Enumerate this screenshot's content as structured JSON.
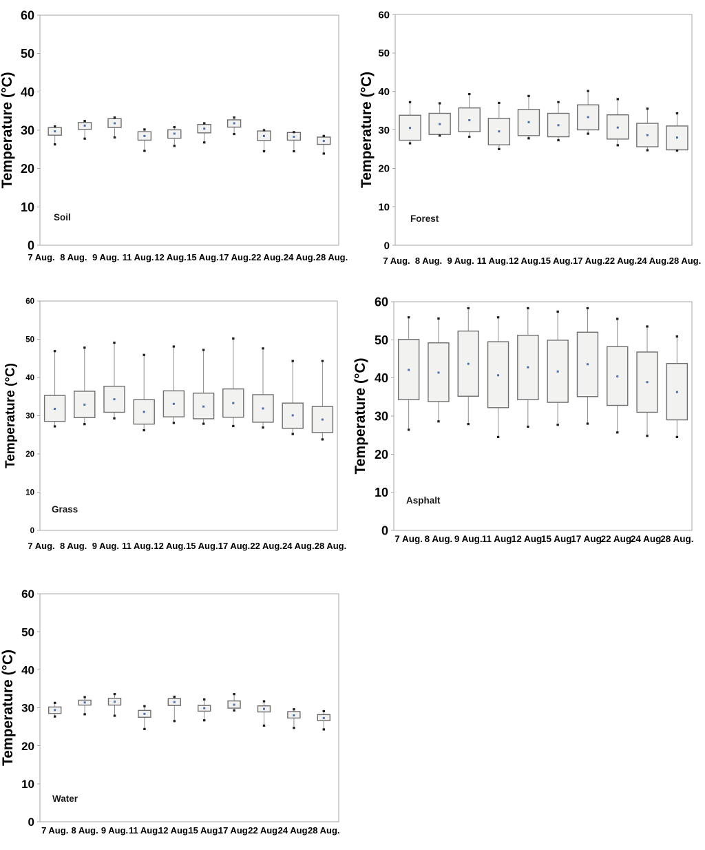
{
  "colors": {
    "background": "#ffffff",
    "axis": "#a6a6a6",
    "tick_text": "#000000",
    "box_fill": "#f2f2f0",
    "box_border": "#6e6e6e",
    "whisker": "#8c8c8c",
    "whisker_cap": "#1f1f1f",
    "mean_marker": "#4e6fae",
    "panel_label": "#1a1a1a"
  },
  "chart_data": [
    {
      "id": "soil",
      "type": "box",
      "title": "Soil",
      "ylabel": "Temperature (°C)",
      "ylim": [
        0,
        60
      ],
      "yticks": [
        0,
        10,
        20,
        30,
        40,
        50,
        60
      ],
      "grid": false,
      "legend": "none",
      "categories": [
        "7 Aug.",
        "8 Aug.",
        "9 Aug.",
        "11 Aug.",
        "12 Aug.",
        "15 Aug.",
        "17 Aug.",
        "22 Aug.",
        "24 Aug.",
        "28 Aug."
      ],
      "boxes": [
        {
          "low": 26.3,
          "q1": 28.7,
          "mean": 29.7,
          "q3": 30.7,
          "high": 31.0
        },
        {
          "low": 27.8,
          "q1": 30.2,
          "mean": 31.2,
          "q3": 32.0,
          "high": 32.4
        },
        {
          "low": 28.1,
          "q1": 30.7,
          "mean": 31.8,
          "q3": 33.0,
          "high": 33.3
        },
        {
          "low": 24.6,
          "q1": 27.4,
          "mean": 28.5,
          "q3": 29.6,
          "high": 30.2
        },
        {
          "low": 25.9,
          "q1": 27.9,
          "mean": 29.1,
          "q3": 30.1,
          "high": 30.8
        },
        {
          "low": 26.8,
          "q1": 29.3,
          "mean": 30.4,
          "q3": 31.5,
          "high": 31.8
        },
        {
          "low": 29.0,
          "q1": 30.8,
          "mean": 31.8,
          "q3": 32.7,
          "high": 33.3
        },
        {
          "low": 24.5,
          "q1": 27.3,
          "mean": 28.5,
          "q3": 29.8,
          "high": 30.0
        },
        {
          "low": 24.5,
          "q1": 27.4,
          "mean": 28.3,
          "q3": 29.4,
          "high": 29.5
        },
        {
          "low": 23.9,
          "q1": 26.3,
          "mean": 27.2,
          "q3": 28.2,
          "high": 28.5
        }
      ]
    },
    {
      "id": "forest",
      "type": "box",
      "title": "Forest",
      "ylabel": "Temperature (°C)",
      "ylim": [
        0,
        60
      ],
      "yticks": [
        0,
        10,
        20,
        30,
        40,
        50,
        60
      ],
      "grid": false,
      "legend": "none",
      "categories": [
        "7 Aug.",
        "8 Aug.",
        "9 Aug.",
        "11 Aug.",
        "12 Aug.",
        "15 Aug.",
        "17 Aug.",
        "22 Aug.",
        "24 Aug.",
        "28 Aug."
      ],
      "boxes": [
        {
          "low": 26.5,
          "q1": 27.3,
          "mean": 30.5,
          "q3": 33.8,
          "high": 37.2
        },
        {
          "low": 28.5,
          "q1": 28.8,
          "mean": 31.5,
          "q3": 34.3,
          "high": 36.9
        },
        {
          "low": 28.2,
          "q1": 29.5,
          "mean": 32.5,
          "q3": 35.7,
          "high": 39.3
        },
        {
          "low": 25.0,
          "q1": 26.1,
          "mean": 29.6,
          "q3": 33.0,
          "high": 37.0
        },
        {
          "low": 27.8,
          "q1": 28.5,
          "mean": 32.0,
          "q3": 35.3,
          "high": 38.8
        },
        {
          "low": 27.3,
          "q1": 28.2,
          "mean": 31.2,
          "q3": 34.3,
          "high": 37.2
        },
        {
          "low": 29.0,
          "q1": 30.0,
          "mean": 33.3,
          "q3": 36.5,
          "high": 40.1
        },
        {
          "low": 26.0,
          "q1": 27.6,
          "mean": 30.6,
          "q3": 33.9,
          "high": 38.0
        },
        {
          "low": 24.7,
          "q1": 25.6,
          "mean": 28.6,
          "q3": 31.7,
          "high": 35.5
        },
        {
          "low": 24.6,
          "q1": 24.8,
          "mean": 28.0,
          "q3": 31.0,
          "high": 34.3
        }
      ]
    },
    {
      "id": "grass",
      "type": "box",
      "title": "Grass",
      "ylabel": "Temperature (°C)",
      "ylim": [
        0,
        60
      ],
      "yticks": [
        0,
        10,
        20,
        30,
        40,
        50,
        60
      ],
      "grid": false,
      "legend": "none",
      "categories": [
        "7 Aug.",
        "8 Aug.",
        "9 Aug.",
        "11 Aug.",
        "12 Aug.",
        "15 Aug.",
        "17 Aug.",
        "22 Aug.",
        "24 Aug.",
        "28 Aug."
      ],
      "boxes": [
        {
          "low": 27.2,
          "q1": 28.5,
          "mean": 31.8,
          "q3": 35.3,
          "high": 46.9
        },
        {
          "low": 27.8,
          "q1": 29.5,
          "mean": 32.9,
          "q3": 36.4,
          "high": 47.8
        },
        {
          "low": 29.3,
          "q1": 30.9,
          "mean": 34.3,
          "q3": 37.7,
          "high": 49.1
        },
        {
          "low": 26.2,
          "q1": 27.8,
          "mean": 31.0,
          "q3": 34.2,
          "high": 45.9
        },
        {
          "low": 28.1,
          "q1": 29.7,
          "mean": 33.1,
          "q3": 36.5,
          "high": 48.1
        },
        {
          "low": 27.9,
          "q1": 29.2,
          "mean": 32.4,
          "q3": 35.9,
          "high": 47.2
        },
        {
          "low": 27.3,
          "q1": 29.6,
          "mean": 33.3,
          "q3": 37.0,
          "high": 50.2
        },
        {
          "low": 26.9,
          "q1": 28.3,
          "mean": 31.9,
          "q3": 35.5,
          "high": 47.6
        },
        {
          "low": 25.2,
          "q1": 26.7,
          "mean": 30.1,
          "q3": 33.3,
          "high": 44.3
        },
        {
          "low": 23.8,
          "q1": 25.6,
          "mean": 29.0,
          "q3": 32.4,
          "high": 44.3
        }
      ]
    },
    {
      "id": "asphalt",
      "type": "box",
      "title": "Asphalt",
      "ylabel": "Temperature (°C)",
      "ylim": [
        0,
        60
      ],
      "yticks": [
        0,
        10,
        20,
        30,
        40,
        50,
        60
      ],
      "grid": false,
      "legend": "none",
      "categories": [
        "7 Aug.",
        "8 Aug.",
        "9 Aug.",
        "11 Aug.",
        "12 Aug.",
        "15 Aug.",
        "17 Aug.",
        "22 Aug.",
        "24 Aug.",
        "28 Aug."
      ],
      "boxes": [
        {
          "low": 26.4,
          "q1": 34.3,
          "mean": 42.1,
          "q3": 50.1,
          "high": 55.9
        },
        {
          "low": 28.6,
          "q1": 33.8,
          "mean": 41.4,
          "q3": 49.2,
          "high": 55.6
        },
        {
          "low": 27.9,
          "q1": 35.2,
          "mean": 43.7,
          "q3": 52.3,
          "high": 58.3
        },
        {
          "low": 24.5,
          "q1": 32.2,
          "mean": 40.7,
          "q3": 49.5,
          "high": 55.9
        },
        {
          "low": 27.2,
          "q1": 34.3,
          "mean": 42.8,
          "q3": 51.2,
          "high": 58.3
        },
        {
          "low": 27.7,
          "q1": 33.6,
          "mean": 41.7,
          "q3": 49.9,
          "high": 57.4
        },
        {
          "low": 28.0,
          "q1": 35.1,
          "mean": 43.6,
          "q3": 52.0,
          "high": 58.3
        },
        {
          "low": 25.7,
          "q1": 32.8,
          "mean": 40.4,
          "q3": 48.2,
          "high": 55.5
        },
        {
          "low": 24.8,
          "q1": 31.0,
          "mean": 38.9,
          "q3": 46.8,
          "high": 53.5
        },
        {
          "low": 24.5,
          "q1": 29.0,
          "mean": 36.3,
          "q3": 43.8,
          "high": 50.9
        }
      ]
    },
    {
      "id": "water",
      "type": "box",
      "title": "Water",
      "ylabel": "Temperature (°C)",
      "ylim": [
        0,
        60
      ],
      "yticks": [
        0,
        10,
        20,
        30,
        40,
        50,
        60
      ],
      "grid": false,
      "legend": "none",
      "categories": [
        "7 Aug.",
        "8 Aug.",
        "9 Aug.",
        "11 Aug.",
        "12 Aug.",
        "15 Aug.",
        "17 Aug.",
        "22 Aug.",
        "24 Aug.",
        "28 Aug."
      ],
      "boxes": [
        {
          "low": 27.7,
          "q1": 28.5,
          "mean": 29.4,
          "q3": 30.2,
          "high": 31.3
        },
        {
          "low": 28.3,
          "q1": 30.7,
          "mean": 31.4,
          "q3": 32.0,
          "high": 32.8
        },
        {
          "low": 27.9,
          "q1": 30.7,
          "mean": 31.6,
          "q3": 32.5,
          "high": 33.6
        },
        {
          "low": 24.4,
          "q1": 27.5,
          "mean": 28.4,
          "q3": 29.3,
          "high": 30.4
        },
        {
          "low": 26.5,
          "q1": 30.6,
          "mean": 31.5,
          "q3": 32.4,
          "high": 32.9
        },
        {
          "low": 26.7,
          "q1": 29.1,
          "mean": 29.9,
          "q3": 30.6,
          "high": 32.2
        },
        {
          "low": 29.3,
          "q1": 29.9,
          "mean": 30.8,
          "q3": 31.8,
          "high": 33.6
        },
        {
          "low": 25.3,
          "q1": 28.9,
          "mean": 29.7,
          "q3": 30.5,
          "high": 31.7
        },
        {
          "low": 24.7,
          "q1": 27.3,
          "mean": 28.0,
          "q3": 29.0,
          "high": 29.6
        },
        {
          "low": 24.3,
          "q1": 26.6,
          "mean": 27.3,
          "q3": 28.2,
          "high": 29.1
        }
      ]
    }
  ]
}
